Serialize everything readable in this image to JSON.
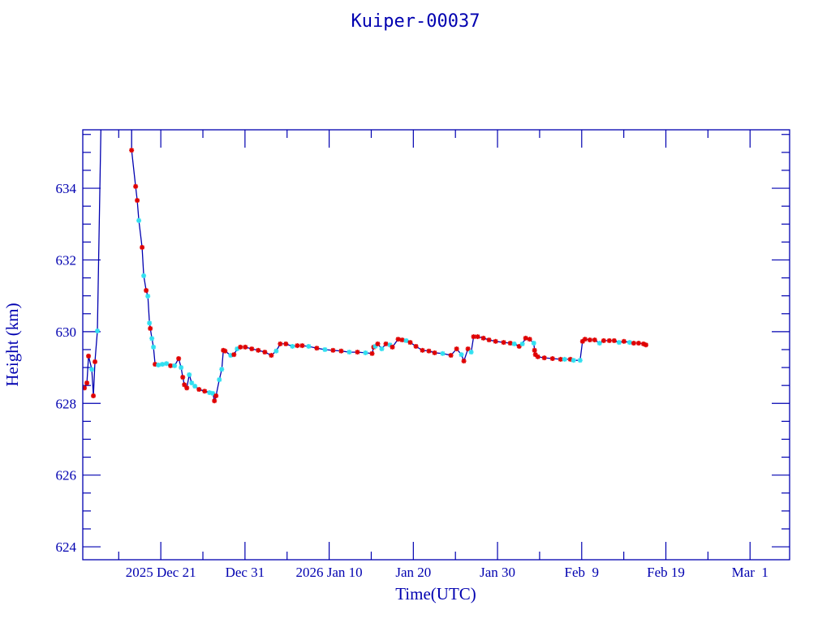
{
  "chart_data": {
    "type": "scatter",
    "title": "Kuiper-00037",
    "xlabel": "Time(UTC)",
    "ylabel": "Height (km)",
    "x_units": "days since 2025 Dec 21 00:00 UTC",
    "xlim": [
      -9.27,
      74.7
    ],
    "ylim": [
      623.64,
      635.63
    ],
    "grid": false,
    "xticks": [
      {
        "value": 0,
        "label": "2025 Dec 21"
      },
      {
        "value": 10,
        "label": "Dec 31"
      },
      {
        "value": 20,
        "label": "2026 Jan 10"
      },
      {
        "value": 30,
        "label": "Jan 20"
      },
      {
        "value": 40,
        "label": "Jan 30"
      },
      {
        "value": 50,
        "label": "Feb  9"
      },
      {
        "value": 60,
        "label": "Feb 19"
      },
      {
        "value": 70,
        "label": "Mar  1"
      }
    ],
    "xminor_step": 5,
    "yticks": [
      624,
      626,
      628,
      630,
      632,
      634
    ],
    "yminor_step": 0.5,
    "colors": {
      "line": "#0000b0",
      "red": "#e00000",
      "cyan": "#30e0f0",
      "axis": "#0000b0"
    },
    "points": [
      [
        -9.07,
        628.43,
        "r"
      ],
      [
        -8.78,
        628.57,
        "r"
      ],
      [
        -8.59,
        629.32,
        "r"
      ],
      [
        -8.2,
        628.95,
        "c"
      ],
      [
        -8.01,
        628.21,
        "r"
      ],
      [
        -7.82,
        629.16,
        "r"
      ],
      [
        -7.53,
        630.02,
        "c"
      ],
      [
        -7.05,
        636.5,
        ""
      ],
      [
        -3.47,
        636.5,
        ""
      ],
      [
        -3.47,
        635.06,
        "r"
      ],
      [
        -2.99,
        634.05,
        "r"
      ],
      [
        -2.8,
        633.66,
        "r"
      ],
      [
        -2.61,
        633.1,
        "c"
      ],
      [
        -2.22,
        632.35,
        "r"
      ],
      [
        -2.03,
        631.56,
        "c"
      ],
      [
        -1.74,
        631.15,
        "r"
      ],
      [
        -1.54,
        630.99,
        "c"
      ],
      [
        -1.35,
        630.24,
        "c"
      ],
      [
        -1.25,
        630.09,
        "r"
      ],
      [
        -1.06,
        629.81,
        "c"
      ],
      [
        -0.87,
        629.57,
        "c"
      ],
      [
        -0.68,
        629.09,
        "r"
      ],
      [
        -0.29,
        629.07,
        "c"
      ],
      [
        0.19,
        629.09,
        "c"
      ],
      [
        0.68,
        629.11,
        "c"
      ],
      [
        1.16,
        629.05,
        "r"
      ],
      [
        1.64,
        629.05,
        "c"
      ],
      [
        2.12,
        629.25,
        "r"
      ],
      [
        2.41,
        629.0,
        "c"
      ],
      [
        2.61,
        628.73,
        "r"
      ],
      [
        2.8,
        628.52,
        "r"
      ],
      [
        3.09,
        628.43,
        "r"
      ],
      [
        3.38,
        628.8,
        "c"
      ],
      [
        3.67,
        628.57,
        "c"
      ],
      [
        4.05,
        628.48,
        "c"
      ],
      [
        4.54,
        628.39,
        "r"
      ],
      [
        5.21,
        628.34,
        "r"
      ],
      [
        5.79,
        628.3,
        "c"
      ],
      [
        6.18,
        628.28,
        "c"
      ],
      [
        6.37,
        628.07,
        "r"
      ],
      [
        6.56,
        628.21,
        "r"
      ],
      [
        6.95,
        628.66,
        "c"
      ],
      [
        7.24,
        628.95,
        "c"
      ],
      [
        7.43,
        629.48,
        "r"
      ],
      [
        7.63,
        629.46,
        "r"
      ],
      [
        8.3,
        629.34,
        "c"
      ],
      [
        8.69,
        629.36,
        "r"
      ],
      [
        9.07,
        629.52,
        "c"
      ],
      [
        9.46,
        629.57,
        "r"
      ],
      [
        10.04,
        629.57,
        "r"
      ],
      [
        10.81,
        629.52,
        "r"
      ],
      [
        11.58,
        629.48,
        "r"
      ],
      [
        12.36,
        629.43,
        "r"
      ],
      [
        13.13,
        629.34,
        "r"
      ],
      [
        13.71,
        629.46,
        "c"
      ],
      [
        14.19,
        629.66,
        "r"
      ],
      [
        14.86,
        629.66,
        "r"
      ],
      [
        15.64,
        629.59,
        "c"
      ],
      [
        16.22,
        629.61,
        "r"
      ],
      [
        16.8,
        629.61,
        "r"
      ],
      [
        17.57,
        629.59,
        "c"
      ],
      [
        18.53,
        629.54,
        "r"
      ],
      [
        19.5,
        629.5,
        "c"
      ],
      [
        20.46,
        629.48,
        "r"
      ],
      [
        21.43,
        629.46,
        "r"
      ],
      [
        22.39,
        629.43,
        "c"
      ],
      [
        23.36,
        629.43,
        "r"
      ],
      [
        24.32,
        629.41,
        "c"
      ],
      [
        25.1,
        629.39,
        "r"
      ],
      [
        25.29,
        629.57,
        "r"
      ],
      [
        25.48,
        629.59,
        "c"
      ],
      [
        25.77,
        629.66,
        "r"
      ],
      [
        26.25,
        629.52,
        "c"
      ],
      [
        26.74,
        629.66,
        "r"
      ],
      [
        27.22,
        629.63,
        "c"
      ],
      [
        27.51,
        629.57,
        "r"
      ],
      [
        28.19,
        629.79,
        "r"
      ],
      [
        28.67,
        629.77,
        "r"
      ],
      [
        29.15,
        629.75,
        "c"
      ],
      [
        29.63,
        629.7,
        "r"
      ],
      [
        30.31,
        629.59,
        "r"
      ],
      [
        31.08,
        629.48,
        "r"
      ],
      [
        31.85,
        629.46,
        "r"
      ],
      [
        32.53,
        629.41,
        "r"
      ],
      [
        33.49,
        629.39,
        "c"
      ],
      [
        34.46,
        629.34,
        "r"
      ],
      [
        35.14,
        629.52,
        "r"
      ],
      [
        35.71,
        629.36,
        "c"
      ],
      [
        36.0,
        629.18,
        "r"
      ],
      [
        36.49,
        629.52,
        "r"
      ],
      [
        36.87,
        629.43,
        "c"
      ],
      [
        37.16,
        629.86,
        "r"
      ],
      [
        37.64,
        629.86,
        "r"
      ],
      [
        38.32,
        629.82,
        "r"
      ],
      [
        38.99,
        629.77,
        "r"
      ],
      [
        39.77,
        629.73,
        "r"
      ],
      [
        40.73,
        629.7,
        "r"
      ],
      [
        41.51,
        629.68,
        "r"
      ],
      [
        41.99,
        629.66,
        "c"
      ],
      [
        42.57,
        629.59,
        "r"
      ],
      [
        42.95,
        629.66,
        "c"
      ],
      [
        43.34,
        629.82,
        "r"
      ],
      [
        43.82,
        629.79,
        "r"
      ],
      [
        44.31,
        629.68,
        "c"
      ],
      [
        44.4,
        629.48,
        "r"
      ],
      [
        44.5,
        629.36,
        "r"
      ],
      [
        44.79,
        629.3,
        "r"
      ],
      [
        45.56,
        629.27,
        "r"
      ],
      [
        46.53,
        629.25,
        "r"
      ],
      [
        47.49,
        629.23,
        "r"
      ],
      [
        47.97,
        629.23,
        "c"
      ],
      [
        48.65,
        629.23,
        "r"
      ],
      [
        49.03,
        629.2,
        "c"
      ],
      [
        49.81,
        629.2,
        "c"
      ],
      [
        50.1,
        629.73,
        "r"
      ],
      [
        50.39,
        629.79,
        "r"
      ],
      [
        50.97,
        629.77,
        "r"
      ],
      [
        51.54,
        629.77,
        "r"
      ],
      [
        52.12,
        629.68,
        "c"
      ],
      [
        52.61,
        629.75,
        "r"
      ],
      [
        53.28,
        629.75,
        "r"
      ],
      [
        53.86,
        629.75,
        "r"
      ],
      [
        54.44,
        629.7,
        "c"
      ],
      [
        55.02,
        629.73,
        "r"
      ],
      [
        55.69,
        629.7,
        "c"
      ],
      [
        56.18,
        629.68,
        "r"
      ],
      [
        56.76,
        629.68,
        "r"
      ],
      [
        57.34,
        629.66,
        "r"
      ],
      [
        57.63,
        629.63,
        "r"
      ]
    ]
  }
}
